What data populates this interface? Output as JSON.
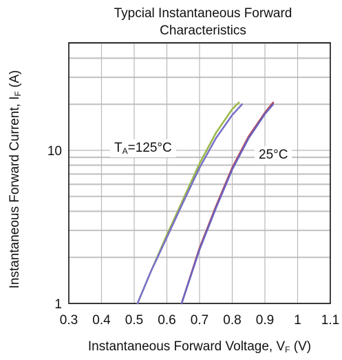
{
  "chart_data": {
    "type": "line",
    "title": "Typcial Instantaneous Forward Characteristics",
    "title_lines": [
      "Typcial Instantaneous Forward",
      "Characteristics"
    ],
    "xlabel_main": "Instantaneous Forward Voltage, V",
    "xlabel_sub": "F",
    "xlabel_unit": " (V)",
    "ylabel_main": "Instantaneous Forward Current, I",
    "ylabel_sub": "F",
    "ylabel_unit": " (A)",
    "x_scale": "linear",
    "y_scale": "log",
    "xlim": [
      0.3,
      1.1
    ],
    "ylim": [
      1,
      50
    ],
    "x_ticks": [
      0.3,
      0.4,
      0.5,
      0.6,
      0.7,
      0.8,
      0.9,
      1,
      1.1
    ],
    "x_tick_labels": [
      "0.3",
      "0.4",
      "0.5",
      "0.6",
      "0.7",
      "0.8",
      "0.9",
      "1",
      "1.1"
    ],
    "y_ticks": [
      1,
      10
    ],
    "y_tick_labels": [
      "1",
      "10"
    ],
    "grid": true,
    "annotations": {
      "ta125_main": "T",
      "ta125_sub": "A",
      "ta125_rest": "=125°C",
      "t25": "25°C"
    },
    "series": [
      {
        "color": "#9ab84a",
        "x": [
          0.51,
          0.55,
          0.6,
          0.65,
          0.7,
          0.75,
          0.8,
          0.82
        ],
        "y": [
          1.0,
          1.6,
          2.8,
          4.8,
          8.2,
          13.0,
          18.6,
          20.5
        ]
      },
      {
        "color": "#7a72c8",
        "x": [
          0.51,
          0.55,
          0.6,
          0.65,
          0.7,
          0.75,
          0.8,
          0.83
        ],
        "y": [
          1.0,
          1.6,
          2.7,
          4.6,
          7.7,
          12.0,
          17.0,
          20.0
        ]
      },
      {
        "color": "#b8434c",
        "x": [
          0.645,
          0.7,
          0.75,
          0.8,
          0.85,
          0.9,
          0.925
        ],
        "y": [
          1.0,
          2.3,
          4.3,
          7.7,
          12.3,
          17.6,
          20.5
        ]
      },
      {
        "color": "#6b63c0",
        "x": [
          0.645,
          0.7,
          0.75,
          0.8,
          0.85,
          0.9,
          0.925
        ],
        "y": [
          1.0,
          2.25,
          4.2,
          7.5,
          12.0,
          17.3,
          20.0
        ]
      }
    ]
  }
}
